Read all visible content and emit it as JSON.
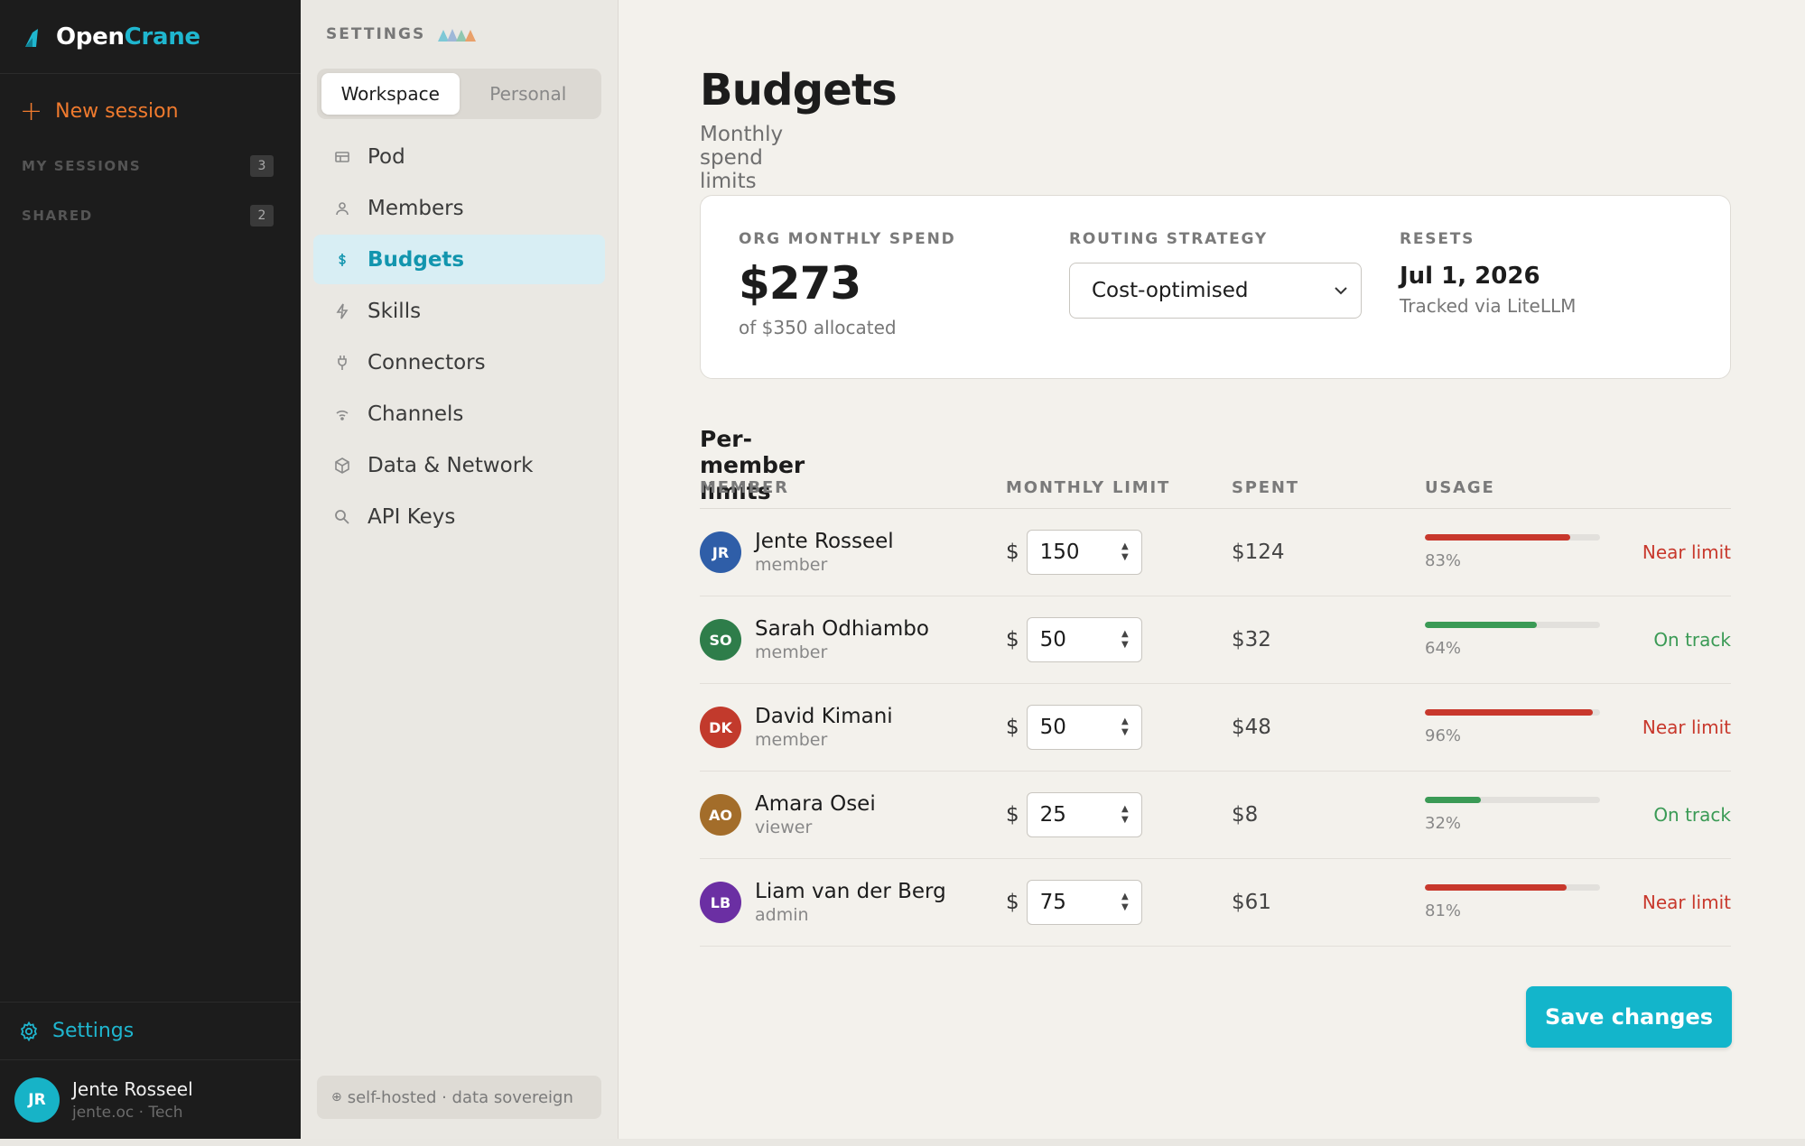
{
  "brand": {
    "name_part1": "Open",
    "name_part2": "Crane"
  },
  "sidebar": {
    "new_session_label": "New session",
    "sections": [
      {
        "label": "MY SESSIONS",
        "count": "3"
      },
      {
        "label": "SHARED",
        "count": "2"
      }
    ],
    "settings_label": "Settings",
    "user": {
      "initials": "JR",
      "name": "Jente Rosseel",
      "sub": "jente.oc · Tech"
    }
  },
  "settings_nav": {
    "heading": "SETTINGS",
    "tabs": [
      {
        "label": "Workspace",
        "active": true
      },
      {
        "label": "Personal",
        "active": false
      }
    ],
    "items": [
      {
        "label": "Pod",
        "icon": "pod-icon"
      },
      {
        "label": "Members",
        "icon": "person-icon"
      },
      {
        "label": "Budgets",
        "icon": "dollar-icon",
        "active": true
      },
      {
        "label": "Skills",
        "icon": "bolt-icon"
      },
      {
        "label": "Connectors",
        "icon": "plug-icon"
      },
      {
        "label": "Channels",
        "icon": "wifi-icon"
      },
      {
        "label": "Data & Network",
        "icon": "cube-icon"
      },
      {
        "label": "API Keys",
        "icon": "key-icon"
      }
    ],
    "footer": "self-hosted · data sovereign"
  },
  "page": {
    "title": "Budgets",
    "subtitle": "Monthly spend limits and model routing strategy."
  },
  "summary": {
    "spend_label": "ORG MONTHLY SPEND",
    "spend_value": "$273",
    "spend_sub": "of $350 allocated",
    "routing_label": "ROUTING STRATEGY",
    "routing_value": "Cost-optimised",
    "resets_label": "RESETS",
    "resets_value": "Jul 1, 2026",
    "resets_sub": "Tracked via LiteLLM"
  },
  "members_table": {
    "title": "Per-member limits",
    "columns": {
      "member": "MEMBER",
      "limit": "MONTHLY LIMIT",
      "spent": "SPENT",
      "usage": "USAGE"
    },
    "currency_symbol": "$",
    "rows": [
      {
        "initials": "JR",
        "name": "Jente Rosseel",
        "role": "member",
        "limit": "150",
        "spent": "$124",
        "usage_pct": 83,
        "usage_label": "83%",
        "status": "Near limit",
        "avatar_color": "#2f5ea8",
        "status_kind": "red"
      },
      {
        "initials": "SO",
        "name": "Sarah Odhiambo",
        "role": "member",
        "limit": "50",
        "spent": "$32",
        "usage_pct": 64,
        "usage_label": "64%",
        "status": "On track",
        "avatar_color": "#2e7d4a",
        "status_kind": "green"
      },
      {
        "initials": "DK",
        "name": "David Kimani",
        "role": "member",
        "limit": "50",
        "spent": "$48",
        "usage_pct": 96,
        "usage_label": "96%",
        "status": "Near limit",
        "avatar_color": "#c23a2c",
        "status_kind": "red"
      },
      {
        "initials": "AO",
        "name": "Amara Osei",
        "role": "viewer",
        "limit": "25",
        "spent": "$8",
        "usage_pct": 32,
        "usage_label": "32%",
        "status": "On track",
        "avatar_color": "#a36d2a",
        "status_kind": "green"
      },
      {
        "initials": "LB",
        "name": "Liam van der Berg",
        "role": "admin",
        "limit": "75",
        "spent": "$61",
        "usage_pct": 81,
        "usage_label": "81%",
        "status": "Near limit",
        "avatar_color": "#6b2fa3",
        "status_kind": "red"
      }
    ]
  },
  "save_label": "Save changes",
  "colors": {
    "accent": "#13b5cb",
    "orange": "#ef7a2e",
    "red": "#c8382c",
    "green": "#3a9a55"
  }
}
